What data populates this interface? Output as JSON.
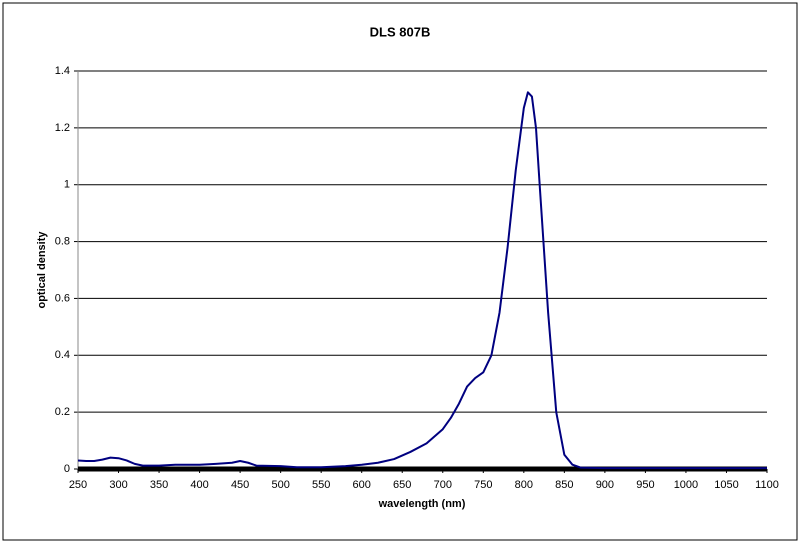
{
  "chart_data": {
    "type": "line",
    "title": "DLS 807B",
    "xlabel": "wavelength (nm)",
    "ylabel": "optical density",
    "x": [
      250,
      260,
      270,
      280,
      290,
      300,
      310,
      320,
      330,
      350,
      370,
      400,
      420,
      440,
      450,
      460,
      470,
      500,
      520,
      550,
      580,
      600,
      620,
      640,
      660,
      680,
      700,
      710,
      720,
      730,
      740,
      750,
      760,
      770,
      780,
      790,
      800,
      805,
      810,
      815,
      820,
      830,
      840,
      850,
      860,
      870,
      900,
      1000,
      1100
    ],
    "values": [
      0.03,
      0.028,
      0.028,
      0.033,
      0.04,
      0.038,
      0.03,
      0.018,
      0.012,
      0.012,
      0.015,
      0.015,
      0.018,
      0.022,
      0.028,
      0.022,
      0.012,
      0.01,
      0.006,
      0.006,
      0.01,
      0.015,
      0.022,
      0.035,
      0.06,
      0.09,
      0.14,
      0.18,
      0.23,
      0.29,
      0.32,
      0.34,
      0.4,
      0.55,
      0.78,
      1.05,
      1.27,
      1.325,
      1.31,
      1.2,
      0.98,
      0.55,
      0.2,
      0.05,
      0.015,
      0.005,
      0.003,
      0.003,
      0.003
    ],
    "color": "#000080",
    "xlim": [
      250,
      1100
    ],
    "xticks": [
      250,
      300,
      350,
      400,
      450,
      500,
      550,
      600,
      650,
      700,
      750,
      800,
      850,
      900,
      950,
      1000,
      1050,
      1100
    ],
    "ylim": [
      0,
      1.4
    ],
    "yticks": [
      0,
      0.2,
      0.4,
      0.6,
      0.8,
      1,
      1.2,
      1.4
    ],
    "grid": true
  }
}
